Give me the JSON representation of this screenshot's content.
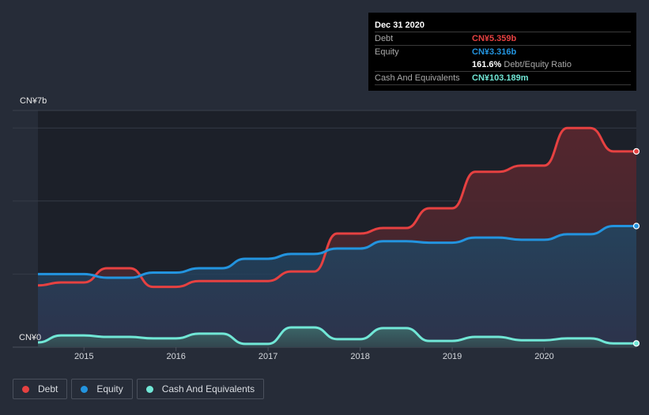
{
  "tooltip": {
    "date": "Dec 31 2020",
    "rows": [
      {
        "label": "Debt",
        "value": "CN¥5.359b",
        "color": "#e64141"
      },
      {
        "label": "Equity",
        "value": "CN¥3.316b",
        "color": "#2394df"
      },
      {
        "label": "",
        "value": "161.6%",
        "suffix": "Debt/Equity Ratio",
        "color": "#ffffff"
      },
      {
        "label": "Cash And Equivalents",
        "value": "CN¥103.189m",
        "color": "#71e7d6"
      }
    ]
  },
  "chart_data": {
    "type": "area",
    "title": "",
    "xlabel": "",
    "ylabel": "",
    "y_top_label": "CN¥7b",
    "y_bottom_label": "CN¥0",
    "ylim": [
      0,
      7
    ],
    "y_unit": "CN¥ billions",
    "grid": true,
    "legend_position": "bottom-left",
    "x_ticks": [
      "2015",
      "2016",
      "2017",
      "2018",
      "2019",
      "2020"
    ],
    "x_tick_values": [
      2015,
      2016,
      2017,
      2018,
      2019,
      2020
    ],
    "x": [
      2014.5,
      2014.75,
      2015.0,
      2015.25,
      2015.5,
      2015.75,
      2016.0,
      2016.25,
      2016.5,
      2016.75,
      2017.0,
      2017.25,
      2017.5,
      2017.75,
      2018.0,
      2018.25,
      2018.5,
      2018.75,
      2019.0,
      2019.25,
      2019.5,
      2019.75,
      2020.0,
      2020.25,
      2020.5,
      2020.75,
      2021.0
    ],
    "series": [
      {
        "name": "Debt",
        "color": "#e64141",
        "values": [
          1.69,
          1.77,
          1.77,
          2.16,
          2.16,
          1.65,
          1.65,
          1.81,
          1.81,
          1.81,
          1.81,
          2.07,
          2.07,
          3.11,
          3.11,
          3.26,
          3.26,
          3.8,
          3.8,
          4.8,
          4.8,
          4.97,
          4.97,
          6.0,
          6.0,
          5.359,
          5.359
        ]
      },
      {
        "name": "Equity",
        "color": "#2394df",
        "values": [
          2.0,
          2.0,
          2.0,
          1.9,
          1.9,
          2.04,
          2.04,
          2.16,
          2.16,
          2.42,
          2.42,
          2.55,
          2.55,
          2.7,
          2.7,
          2.9,
          2.9,
          2.86,
          2.86,
          3.0,
          3.0,
          2.94,
          2.94,
          3.09,
          3.09,
          3.316,
          3.316
        ]
      },
      {
        "name": "Cash And Equivalents",
        "color": "#71e7d6",
        "values": [
          0.13,
          0.32,
          0.32,
          0.28,
          0.28,
          0.24,
          0.24,
          0.37,
          0.37,
          0.09,
          0.09,
          0.54,
          0.54,
          0.22,
          0.22,
          0.52,
          0.52,
          0.17,
          0.17,
          0.28,
          0.28,
          0.19,
          0.19,
          0.24,
          0.24,
          0.103,
          0.103
        ]
      }
    ]
  },
  "legend": [
    {
      "label": "Debt",
      "color": "#e64141"
    },
    {
      "label": "Equity",
      "color": "#2394df"
    },
    {
      "label": "Cash And Equivalents",
      "color": "#71e7d6"
    }
  ]
}
